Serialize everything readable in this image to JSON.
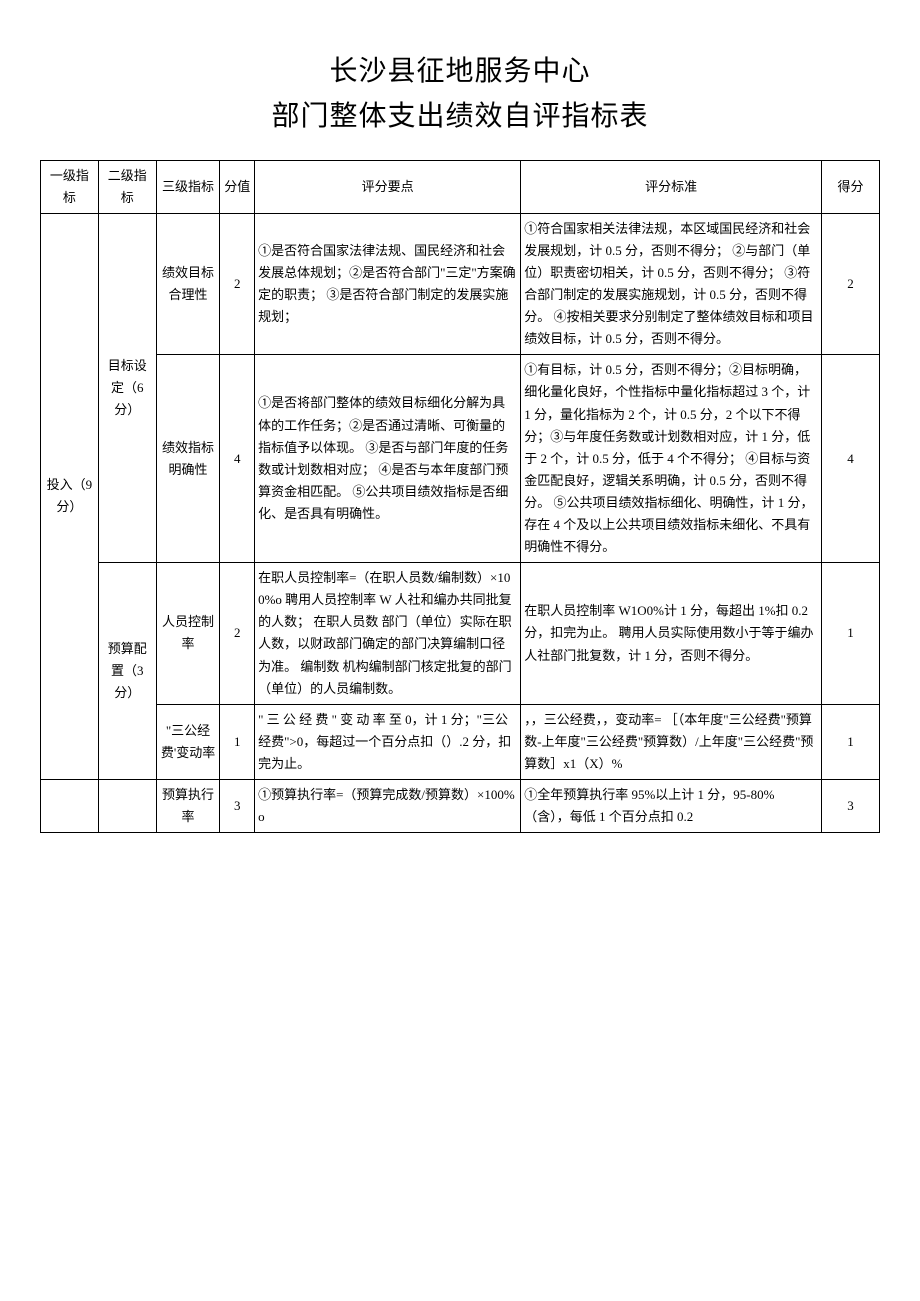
{
  "title": {
    "line1": "长沙县征地服务中心",
    "line2": "部门整体支出绩效自评指标表"
  },
  "headers": {
    "level1": "一级指标",
    "level2": "二级指标",
    "level3": "三级指标",
    "score_value": "分值",
    "points": "评分要点",
    "criteria": "评分标准",
    "score": "得分"
  },
  "rows": [
    {
      "l1": "投入（9 分）",
      "l2": "目标设定（6分）",
      "l3": "绩效目标合理性",
      "val": "2",
      "points": "①是否符合国家法律法规、国民经济和社会发展总体规划；②是否符合部门\"三定\"方案确定的职责；\n③是否符合部门制定的发展实施规划；",
      "criteria": "①符合国家相关法律法规，本区域国民经济和社会发展规划，计 0.5 分，否则不得分；\n②与部门（单位）职责密切相关，计 0.5 分，否则不得分；\n③符合部门制定的发展实施规划，计 0.5 分，否则不得分。\n④按相关要求分别制定了整体绩效目标和项目绩效目标，计 0.5 分，否则不得分。",
      "score": "2"
    },
    {
      "l3": "绩效指标明确性",
      "val": "4",
      "points": "①是否将部门整体的绩效目标细化分解为具体的工作任务；②是否通过清晰、可衡量的指标值予以体现。\n③是否与部门年度的任务数或计划数相对应；\n④是否与本年度部门预算资金相匹配。\n⑤公共项目绩效指标是否细化、是否具有明确性。",
      "criteria": "①有目标，计 0.5 分，否则不得分；②目标明确，细化量化良好，个性指标中量化指标超过 3 个，计 1 分，量化指标为 2 个，计 0.5 分，2 个以下不得分；③与年度任务数或计划数相对应，计 1 分，低于 2 个，计 0.5 分，低于 4 个不得分；\n④目标与资金匹配良好，逻辑关系明确，计 0.5 分，否则不得分。\n⑤公共项目绩效指标细化、明确性，计 1 分，存在 4 个及以上公共项目绩效指标未细化、不具有明确性不得分。",
      "score": "4"
    },
    {
      "l2": "预算配置（3分）",
      "l3": "人员控制率",
      "val": "2",
      "points": "在职人员控制率=（在职人员数/编制数）×100%o\n聘用人员控制率 W 人社和编办共同批复的人数；\n在职人员数 部门（单位）实际在职人数，以财政部门确定的部门决算编制口径为准。\n编制数 机构编制部门核定批复的部门（单位）的人员编制数。",
      "criteria": "在职人员控制率 W1O0%计 1 分，每超出 1%扣 0.2 分，扣完为止。\n聘用人员实际使用数小于等于编办人社部门批复数，计 1 分，否则不得分。",
      "score": "1"
    },
    {
      "l3": "\"三公经费'变动率",
      "val": "1",
      "points": "\" 三 公 经 费 \" 变 动 率 至 0，计 1 分；\"三公经费\">0，每超过一个百分点扣（）.2 分，扣完为止。",
      "criteria": "，，三公经费，，变动率= ［（本年度\"三公经费\"预算数-上年度\"三公经费\"预算数）/上年度\"三公经费\"预算数］x1（X）%",
      "score": "1"
    },
    {
      "l3": "预算执行率",
      "val": "3",
      "points": "①预算执行率=（预算完成数/预算数）×100%o",
      "criteria": "①全年预算执行率 95%以上计 1 分，95-80%（含），每低 1 个百分点扣 0.2",
      "score": "3"
    }
  ]
}
